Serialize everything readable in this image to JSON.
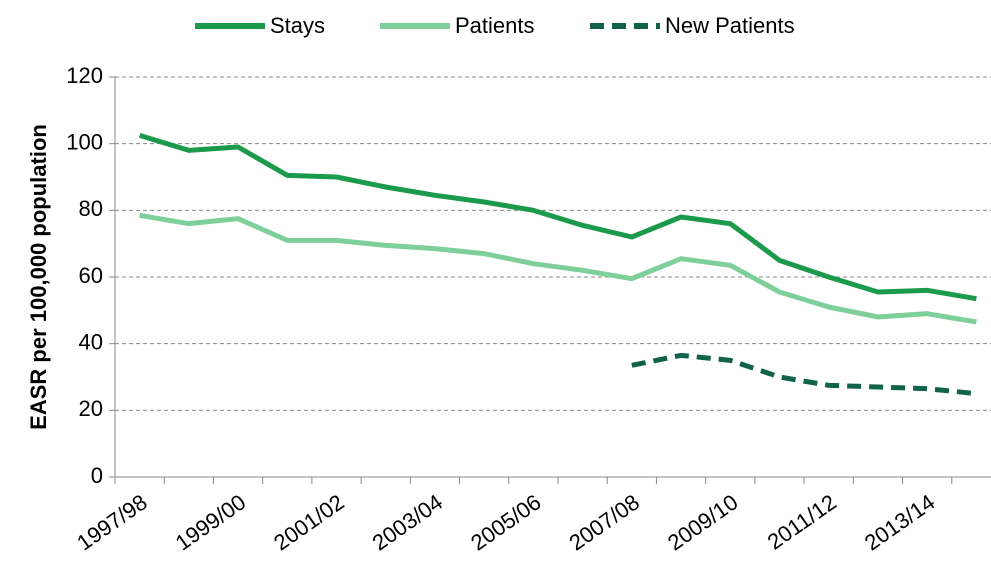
{
  "chart_data": {
    "type": "line",
    "y_label": "EASR per 100,000  population",
    "categories": [
      "1997/98",
      null,
      "1999/00",
      null,
      "2001/02",
      null,
      "2003/04",
      null,
      "2005/06",
      null,
      "2007/08",
      null,
      "2009/10",
      null,
      "2011/12",
      null,
      "2013/14",
      null
    ],
    "series": [
      {
        "name": "Stays",
        "color": "#1a9a4a",
        "line_style": "solid",
        "values": [
          102.5,
          98,
          99,
          90.5,
          90,
          87,
          84.5,
          82.5,
          80,
          75.5,
          72,
          78,
          76,
          65,
          60,
          55.5,
          56,
          53.5
        ]
      },
      {
        "name": "Patients",
        "color": "#7fcf9a",
        "line_style": "solid",
        "values": [
          78.5,
          76,
          77.5,
          71,
          71,
          69.5,
          68.5,
          67,
          64,
          62,
          59.5,
          65.5,
          63.5,
          55.5,
          51,
          48,
          49,
          46.5
        ]
      },
      {
        "name": "New Patients",
        "color": "#11624a",
        "line_style": "dashed",
        "values": [
          null,
          null,
          null,
          null,
          null,
          null,
          null,
          null,
          null,
          null,
          33.5,
          36.5,
          35,
          30,
          27.5,
          27,
          26.5,
          25
        ]
      }
    ],
    "ylim": [
      0,
      120
    ],
    "yticks": [
      0,
      20,
      40,
      60,
      80,
      100,
      120
    ],
    "grid": true,
    "legend": "top"
  }
}
